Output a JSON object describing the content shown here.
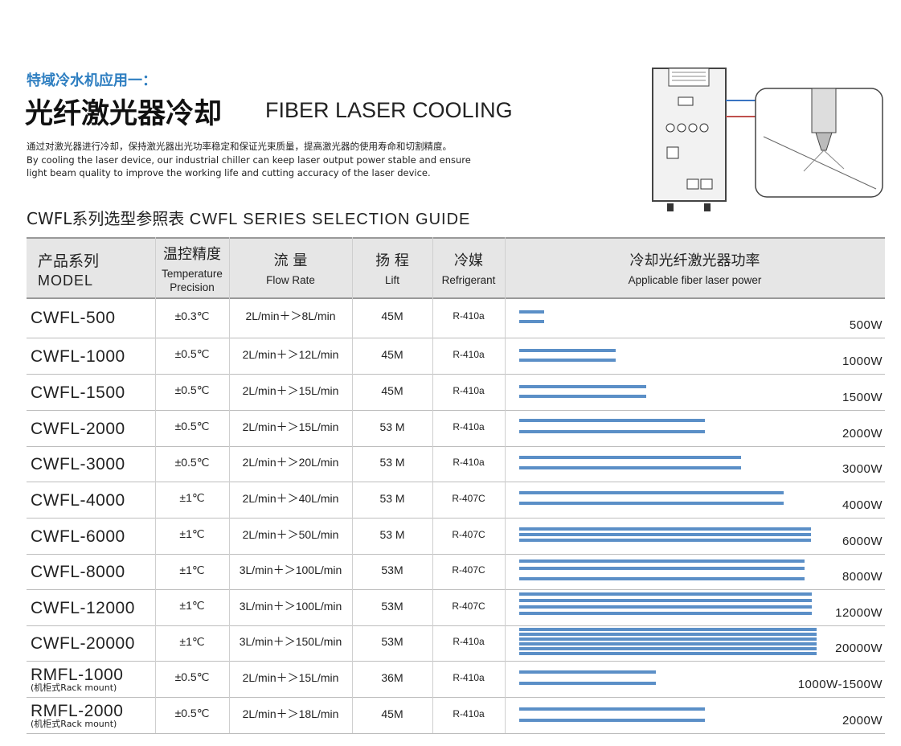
{
  "header": {
    "category": "特域冷水机应用一：",
    "title_cn": "光纤激光器冷却",
    "title_en": "FIBER LASER COOLING",
    "description": [
      "通过对激光器进行冷却，保持激光器出光功率稳定和保证光束质量，提高激光器的使用寿命和切割精度。",
      "By cooling the laser device, our industrial chiller can keep laser output power stable and ensure",
      "light beam quality to improve the working life and cutting accuracy of the laser device."
    ]
  },
  "table": {
    "title_cn": "CWFL系列选型参照表",
    "title_en": "CWFL SERIES SELECTION GUIDE",
    "columns": [
      {
        "cn": "产品系列",
        "en": "MODEL"
      },
      {
        "cn": "温控精度",
        "en": "Temperature Precision"
      },
      {
        "cn": "流 量",
        "en": "Flow Rate"
      },
      {
        "cn": "扬 程",
        "en": "Lift"
      },
      {
        "cn": "冷媒",
        "en": "Refrigerant"
      },
      {
        "cn": "冷却光纤激光器功率",
        "en": "Applicable fiber laser power"
      }
    ],
    "rows": [
      {
        "model": "CWFL-500",
        "temp": "±0.3℃",
        "flow": "2L/min＋＞8L/min",
        "lift": "45M",
        "refrigerant": "R-410a",
        "power": "500W"
      },
      {
        "model": "CWFL-1000",
        "temp": "±0.5℃",
        "flow": "2L/min＋＞12L/min",
        "lift": "45M",
        "refrigerant": "R-410a",
        "power": "1000W"
      },
      {
        "model": "CWFL-1500",
        "temp": "±0.5℃",
        "flow": "2L/min＋＞15L/min",
        "lift": "45M",
        "refrigerant": "R-410a",
        "power": "1500W"
      },
      {
        "model": "CWFL-2000",
        "temp": "±0.5℃",
        "flow": "2L/min＋＞15L/min",
        "lift": "53 M",
        "refrigerant": "R-410a",
        "power": "2000W"
      },
      {
        "model": "CWFL-3000",
        "temp": "±0.5℃",
        "flow": "2L/min＋＞20L/min",
        "lift": "53 M",
        "refrigerant": "R-410a",
        "power": "3000W"
      },
      {
        "model": "CWFL-4000",
        "temp": "±1℃",
        "flow": "2L/min＋＞40L/min",
        "lift": "53 M",
        "refrigerant": "R-407C",
        "power": "4000W"
      },
      {
        "model": "CWFL-6000",
        "temp": "±1℃",
        "flow": "2L/min＋＞50L/min",
        "lift": "53 M",
        "refrigerant": "R-407C",
        "power": "6000W"
      },
      {
        "model": "CWFL-8000",
        "temp": "±1℃",
        "flow": "3L/min＋＞100L/min",
        "lift": "53M",
        "refrigerant": "R-407C",
        "power": "8000W"
      },
      {
        "model": "CWFL-12000",
        "temp": "±1℃",
        "flow": "3L/min＋＞100L/min",
        "lift": "53M",
        "refrigerant": "R-407C",
        "power": "12000W"
      },
      {
        "model": "CWFL-20000",
        "temp": "±1℃",
        "flow": "3L/min＋＞150L/min",
        "lift": "53M",
        "refrigerant": "R-410a",
        "power": "20000W"
      },
      {
        "model": "RMFL-1000",
        "note": "(机柜式Rack mount)",
        "temp": "±0.5℃",
        "flow": "2L/min＋＞15L/min",
        "lift": "36M",
        "refrigerant": "R-410a",
        "power": "1000W-1500W"
      },
      {
        "model": "RMFL-2000",
        "note": "(机柜式Rack mount)",
        "temp": "±0.5℃",
        "flow": "2L/min＋＞18L/min",
        "lift": "45M",
        "refrigerant": "R-410a",
        "power": "2000W"
      }
    ]
  }
}
